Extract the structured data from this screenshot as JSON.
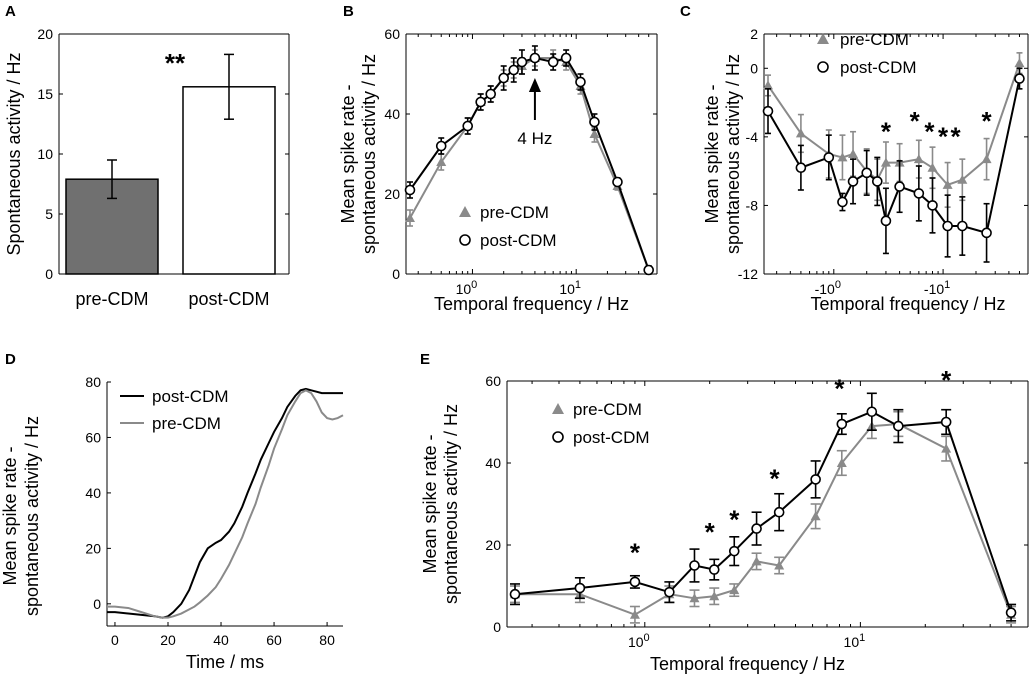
{
  "colors": {
    "pre": "#8a8a8a",
    "post": "#000000",
    "bar_pre": "#707070",
    "bar_post": "#ffffff"
  },
  "chart_data": [
    {
      "panel": "A",
      "type": "bar",
      "categories": [
        "pre-CDM",
        "post-CDM"
      ],
      "values": [
        7.9,
        15.6
      ],
      "errors": [
        1.6,
        2.7
      ],
      "ylabel": "Spontaneous activity / Hz",
      "ylim": [
        0,
        20
      ],
      "yticks": [
        0,
        5,
        10,
        15,
        20
      ],
      "significance": "**"
    },
    {
      "panel": "B",
      "type": "line",
      "xscale": "log",
      "xlabel": "Temporal frequency / Hz",
      "ylabel_line1": "Mean spike rate -",
      "ylabel_line2": "spontaneous activity / Hz",
      "xlim": [
        0.25,
        55
      ],
      "ylim": [
        0,
        60
      ],
      "yticks": [
        0,
        20,
        40,
        60
      ],
      "xticks": [
        {
          "v": 1,
          "base": "10",
          "exp": "0"
        },
        {
          "v": 10,
          "base": "10",
          "exp": "1"
        }
      ],
      "annotation": "4 Hz",
      "annotation_x": 4,
      "series": [
        {
          "name": "pre-CDM",
          "marker": "triangle",
          "x": [
            0.25,
            0.5,
            0.9,
            1.2,
            1.5,
            2,
            2.5,
            3,
            4,
            6,
            8,
            11,
            15,
            25,
            50
          ],
          "y": [
            14,
            28,
            37,
            43,
            45,
            49,
            51,
            52,
            54,
            54,
            53,
            47,
            35,
            22,
            1
          ],
          "err": [
            2,
            2,
            2,
            2,
            2,
            2,
            2,
            2,
            2,
            2,
            2,
            2,
            2,
            1,
            1
          ]
        },
        {
          "name": "post-CDM",
          "marker": "circle",
          "x": [
            0.25,
            0.5,
            0.9,
            1.2,
            1.5,
            2,
            2.5,
            3,
            4,
            6,
            8,
            11,
            15,
            25,
            50
          ],
          "y": [
            21,
            32,
            37,
            43,
            45,
            49,
            51,
            53,
            54,
            53,
            54,
            48,
            38,
            23,
            1
          ],
          "err": [
            2,
            2,
            2,
            2,
            2,
            3,
            3,
            3,
            3,
            2,
            2,
            2,
            2,
            1,
            1
          ]
        }
      ]
    },
    {
      "panel": "C",
      "type": "line",
      "xscale": "log",
      "xlabel": "Temporal frequency / Hz",
      "ylabel_line1": "Mean spike rate -",
      "ylabel_line2": "spontaneous activity / Hz",
      "xlim": [
        0.25,
        55
      ],
      "ylim": [
        -12,
        2
      ],
      "yticks": [
        2,
        0,
        -4,
        -8,
        -12
      ],
      "xticks": [
        {
          "v": 1,
          "base": "-10",
          "exp": "0"
        },
        {
          "v": 10,
          "base": "-10",
          "exp": "1"
        }
      ],
      "significance_x": [
        3,
        5.5,
        7.5,
        10,
        13,
        25
      ],
      "significance_y": [
        -4.2,
        -3.6,
        -4.2,
        -4.5,
        -4.5,
        -3.6
      ],
      "series": [
        {
          "name": "pre-CDM",
          "marker": "triangle",
          "x": [
            0.25,
            0.5,
            0.9,
            1.2,
            1.5,
            2,
            2.5,
            3,
            4,
            6,
            8,
            11,
            15,
            25,
            50
          ],
          "y": [
            -1,
            -3.8,
            -5,
            -5.2,
            -5,
            -6,
            -6.5,
            -5.5,
            -5.5,
            -5.3,
            -5.8,
            -6.8,
            -6.5,
            -5.3,
            0.3
          ],
          "err": [
            0.6,
            1.1,
            1.4,
            1.3,
            1.3,
            1.3,
            1.2,
            1.2,
            1.1,
            1.1,
            1.2,
            1.3,
            1.2,
            1.2,
            0.6
          ]
        },
        {
          "name": "post-CDM",
          "marker": "circle",
          "x": [
            0.25,
            0.5,
            0.9,
            1.2,
            1.5,
            2,
            2.5,
            3,
            4,
            6,
            8,
            11,
            15,
            25,
            50
          ],
          "y": [
            -2.5,
            -5.8,
            -5.2,
            -7.8,
            -6.6,
            -6.1,
            -6.6,
            -8.9,
            -6.9,
            -7.3,
            -8,
            -9.2,
            -9.2,
            -9.6,
            -0.6
          ],
          "err": [
            1.3,
            1.3,
            1.3,
            0.5,
            1.3,
            1.3,
            1.4,
            1.9,
            1.5,
            1.6,
            1.6,
            1.8,
            1.7,
            1.7,
            0.6
          ]
        }
      ]
    },
    {
      "panel": "D",
      "type": "line",
      "xlabel": "Time / ms",
      "ylabel_line1": "Mean spike rate -",
      "ylabel_line2": "spontaneous activity / Hz",
      "xlim": [
        -3,
        86
      ],
      "ylim": [
        -8,
        80
      ],
      "xticks": [
        0,
        20,
        40,
        60,
        80
      ],
      "yticks": [
        0,
        20,
        40,
        60,
        80
      ],
      "series": [
        {
          "name": "post-CDM",
          "x": [
            -3,
            0,
            5,
            10,
            15,
            18,
            20,
            22,
            25,
            28,
            30,
            32,
            35,
            38,
            40,
            43,
            45,
            48,
            50,
            53,
            55,
            58,
            60,
            63,
            65,
            68,
            70,
            72,
            74,
            76,
            78,
            80,
            82,
            84,
            86
          ],
          "y": [
            -3,
            -3,
            -3.5,
            -4,
            -4.5,
            -5,
            -4.5,
            -3,
            0,
            5,
            10,
            15,
            20,
            22,
            23,
            26,
            29,
            35,
            40,
            47,
            52,
            58,
            62,
            67,
            71,
            75,
            77,
            77.5,
            77,
            76.5,
            76,
            76,
            76,
            76,
            76
          ]
        },
        {
          "name": "pre-CDM",
          "x": [
            -3,
            0,
            5,
            10,
            15,
            18,
            20,
            22,
            25,
            28,
            30,
            32,
            35,
            38,
            40,
            43,
            45,
            48,
            50,
            53,
            55,
            58,
            60,
            63,
            65,
            68,
            70,
            72,
            74,
            76,
            78,
            80,
            82,
            84,
            86
          ],
          "y": [
            -1,
            -1,
            -1.5,
            -3,
            -4.5,
            -5,
            -5,
            -4.5,
            -3.5,
            -2,
            -1,
            0.5,
            3,
            6,
            9,
            14,
            18,
            24,
            29,
            36,
            42,
            50,
            56,
            63,
            68,
            73,
            76,
            77,
            76,
            73,
            69,
            67,
            66.5,
            67,
            68
          ]
        }
      ]
    },
    {
      "panel": "E",
      "type": "line",
      "xscale": "log",
      "xlabel": "Temporal frequency / Hz",
      "ylabel_line1": "Mean spike rate -",
      "ylabel_line2": "spontaneous activity / Hz",
      "xlim": [
        0.25,
        55
      ],
      "ylim": [
        0,
        60
      ],
      "yticks": [
        0,
        20,
        40,
        60
      ],
      "xticks": [
        {
          "v": 1,
          "base": "10",
          "exp": "0"
        },
        {
          "v": 10,
          "base": "10",
          "exp": "1"
        }
      ],
      "significance_x": [
        0.9,
        2,
        2.6,
        4,
        8,
        25
      ],
      "significance_y": [
        16,
        21,
        24,
        34,
        56,
        58
      ],
      "series": [
        {
          "name": "pre-CDM",
          "marker": "triangle",
          "x": [
            0.25,
            0.5,
            0.9,
            1.3,
            1.7,
            2.1,
            2.6,
            3.3,
            4.2,
            6.2,
            8.2,
            11.3,
            15,
            25,
            50
          ],
          "y": [
            8,
            8,
            3,
            8,
            7,
            7.5,
            9,
            16,
            15,
            27,
            40,
            49,
            49.5,
            43.5,
            3
          ],
          "err": [
            2,
            2,
            2,
            2,
            2,
            2,
            1.5,
            2,
            2,
            3,
            3,
            3,
            3,
            3,
            2
          ]
        },
        {
          "name": "post-CDM",
          "marker": "circle",
          "x": [
            0.25,
            0.5,
            0.9,
            1.3,
            1.7,
            2.1,
            2.6,
            3.3,
            4.2,
            6.2,
            8.2,
            11.3,
            15,
            25,
            50
          ],
          "y": [
            8,
            9.5,
            11,
            8.5,
            15,
            14,
            18.5,
            24,
            28,
            36,
            49.5,
            52.5,
            49,
            50,
            3.5
          ],
          "err": [
            2.5,
            2.5,
            1.5,
            2.5,
            4,
            2.5,
            3.5,
            4,
            4.5,
            4.5,
            2.5,
            4.5,
            4,
            3,
            2
          ]
        }
      ]
    }
  ]
}
